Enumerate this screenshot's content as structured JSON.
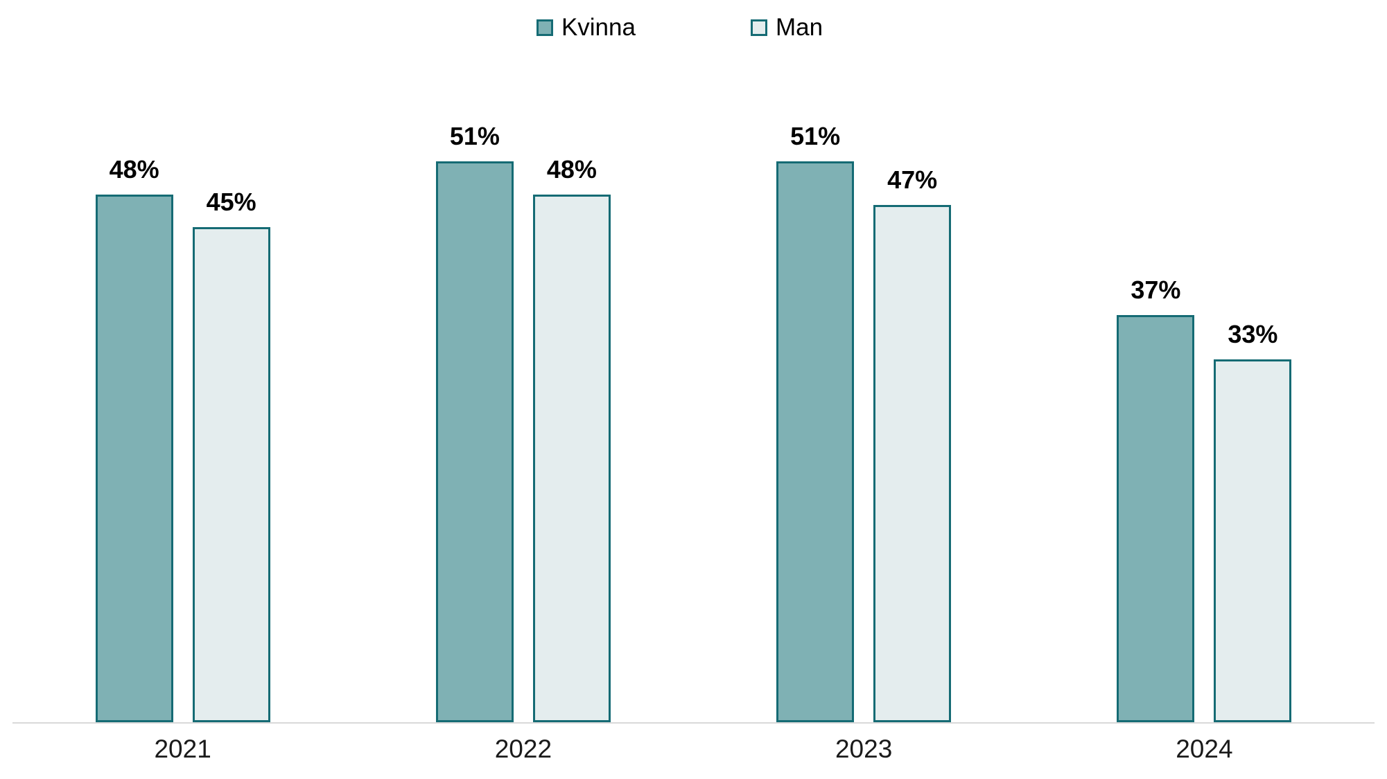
{
  "chart_data": {
    "type": "bar",
    "title": "",
    "xlabel": "",
    "ylabel": "",
    "categories": [
      "2021",
      "2022",
      "2023",
      "2024"
    ],
    "series": [
      {
        "name": "Kvinna",
        "values": [
          48,
          51,
          51,
          37
        ],
        "labels": [
          "48%",
          "51%",
          "51%",
          "37%"
        ],
        "fill": "#7FB1B4",
        "border": "#156B74"
      },
      {
        "name": "Man",
        "values": [
          45,
          48,
          47,
          33
        ],
        "labels": [
          "45%",
          "48%",
          "47%",
          "33%"
        ],
        "fill": "#E4EDEE",
        "border": "#156B74"
      }
    ],
    "value_suffix": "%",
    "ylim": [
      0,
      60
    ],
    "grid": false,
    "legend_position": "top",
    "axis_line_color": "#D9D9D9",
    "background_color": "#FFFFFF",
    "value_label_color": "#000000",
    "category_label_color": "#1A1A1A"
  }
}
